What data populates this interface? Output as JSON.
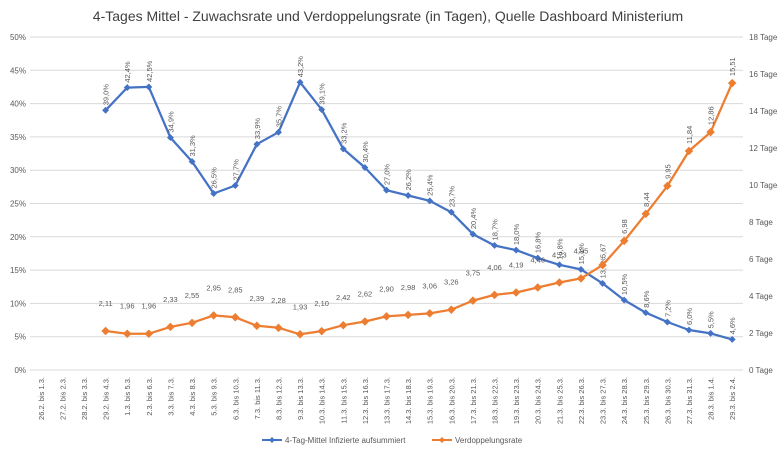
{
  "colors": {
    "series_blue": "#4472C4",
    "series_orange": "#ED7D31",
    "grid": "#D9D9D9",
    "text": "#595959",
    "title": "#404040"
  },
  "chart_data": {
    "type": "line",
    "title": "4-Tages Mittel - Zuwachsrate und Verdoppelungsrate (in Tagen), Quelle Dashboard Ministerium",
    "categories": [
      "26.2. bis 1.3.",
      "27.2. bis 2.3.",
      "28.2. bis 3.3.",
      "29.2. bis 4.3.",
      "1.3. bis 5.3.",
      "2.3. bis 6.3.",
      "3.3. bis 7.3.",
      "4.3. bis 8.3.",
      "5.3. bis 9.3.",
      "6.3. bis 10.3.",
      "7.3. bis 11.3.",
      "8.3. bis 12.3.",
      "9.3. bis 13.3.",
      "10.3. bis 14.3.",
      "11.3. bis 15.3.",
      "12.3. bis 16.3.",
      "13.3. bis 17.3.",
      "14.3. bis 18.3.",
      "15.3. bis 19.3.",
      "16.3. bis 20.3.",
      "17.3. bis 21.3.",
      "18.3. bis 22.3.",
      "19.3. bis 23.3.",
      "20.3. bis 24.3.",
      "21.3. bis 25.3.",
      "22.3. bis 26.3.",
      "23.3. bis 27.3.",
      "24.3. bis 28.3.",
      "25.3. bis 29.3.",
      "26.3. bis 30.3.",
      "27.3. bis 31.3.",
      "28.3. bis 1.4.",
      "29.3. bis 2.4."
    ],
    "y_left": {
      "min": 0,
      "max": 50,
      "step": 5,
      "tick_labels": [
        "0%",
        "5%",
        "10%",
        "15%",
        "20%",
        "25%",
        "30%",
        "35%",
        "40%",
        "45%",
        "50%"
      ]
    },
    "y_right": {
      "min": 0,
      "max": 18,
      "step": 2,
      "tick_labels": [
        "0 Tage",
        "2 Tage",
        "4 Tage",
        "6 Tage",
        "8 Tage",
        "10 Tage",
        "12 Tage",
        "14 Tage",
        "16 Tage",
        "18 Tage"
      ]
    },
    "grid": true,
    "legend_position": "bottom",
    "series": [
      {
        "name": "4-Tag-Mittel Infizierte aufsummiert",
        "axis": "left",
        "color": "#4472C4",
        "marker": "diamond",
        "values": [
          null,
          null,
          null,
          39.0,
          42.4,
          42.5,
          34.9,
          31.3,
          26.5,
          27.7,
          33.9,
          35.7,
          43.2,
          39.1,
          33.2,
          30.4,
          27.0,
          26.2,
          25.4,
          23.7,
          20.4,
          18.7,
          18.0,
          16.8,
          15.8,
          15.1,
          13.0,
          10.5,
          8.6,
          7.2,
          6.0,
          5.5,
          4.6
        ],
        "labels": [
          null,
          null,
          null,
          "39,0%",
          "42,4%",
          "42,5%",
          "34,9%",
          "31,3%",
          "26,5%",
          "27,7%",
          "33,9%",
          "35,7%",
          "43,2%",
          "39,1%",
          "33,2%",
          "30,4%",
          "27,0%",
          "26,2%",
          "25,4%",
          "23,7%",
          "20,4%",
          "18,7%",
          "18,0%",
          "16,8%",
          "15,8%",
          "15,1%",
          "13,0%",
          "10,5%",
          "8,6%",
          "7,2%",
          "6,0%",
          "5,5%",
          "4,6%"
        ]
      },
      {
        "name": "Verdoppelungsrate",
        "axis": "right",
        "color": "#ED7D31",
        "marker": "diamond",
        "values": [
          null,
          null,
          null,
          2.11,
          1.96,
          1.96,
          2.33,
          2.55,
          2.95,
          2.85,
          2.39,
          2.28,
          1.93,
          2.1,
          2.42,
          2.62,
          2.9,
          2.98,
          3.06,
          3.26,
          3.75,
          4.06,
          4.19,
          4.46,
          4.73,
          4.95,
          5.67,
          6.98,
          8.44,
          9.95,
          11.84,
          12.86,
          15.51
        ],
        "labels": [
          null,
          null,
          null,
          "2,11",
          "1,96",
          "1,96",
          "2,33",
          "2,55",
          "2,95",
          "2,85",
          "2,39",
          "2,28",
          "1,93",
          "2,10",
          "2,42",
          "2,62",
          "2,90",
          "2,98",
          "3,06",
          "3,26",
          "3,75",
          "4,06",
          "4,19",
          "4,46",
          "4,73",
          "4,95",
          "5,67",
          "6,98",
          "8,44",
          "9,95",
          "11,84",
          "12,86",
          "15,51"
        ]
      }
    ]
  }
}
